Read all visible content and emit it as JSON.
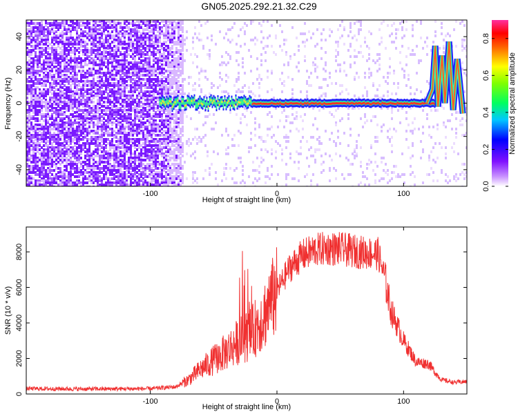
{
  "title": "GN05.2025.292.21.32.C29",
  "colors": {
    "trace": "#f03030",
    "frame": "#000000"
  },
  "chart_data": [
    {
      "type": "heatmap",
      "xlabel": "Height of straight line (km)",
      "ylabel": "Frequency (Hz)",
      "xlim": [
        -198,
        150
      ],
      "ylim": [
        -50,
        50
      ],
      "xticks": [
        -100,
        0,
        100
      ],
      "xtick_labels": [
        "-100",
        "0",
        "100"
      ],
      "yticks": [
        -40,
        -20,
        0,
        20,
        40
      ],
      "ytick_labels": [
        "-40",
        "-20",
        "0",
        "20",
        "40"
      ],
      "colorbar": {
        "label": "Normalized spectral amplitude",
        "range": [
          0,
          0.9
        ],
        "ticks": [
          0,
          0.2,
          0.4,
          0.6,
          0.8
        ],
        "tick_labels": [
          "0.0",
          "0.2",
          "0.4",
          "0.6",
          "0.8"
        ],
        "colormap": "rainbow (white-violet-blue-cyan-green-yellow-red-magenta)"
      },
      "features": {
        "noise_region_x": [
          -198,
          -75
        ],
        "signal_band_start_x": -93,
        "signal_band_center_hz": 0,
        "spike_end_x": [
          125,
          150
        ],
        "spike_peak_hz": 37
      },
      "grid": false
    },
    {
      "type": "line",
      "xlabel": "Height of straight line (km)",
      "ylabel": "SNR (10 * v/v)",
      "xlim": [
        -198,
        150
      ],
      "ylim": [
        0,
        9400
      ],
      "xticks": [
        -100,
        0,
        100
      ],
      "xtick_labels": [
        "-100",
        "0",
        "100"
      ],
      "yticks": [
        0,
        2000,
        4000,
        6000,
        8000
      ],
      "ytick_labels": [
        "0",
        "2000",
        "4000",
        "6000",
        "8000"
      ],
      "x": [
        -198,
        -150,
        -100,
        -80,
        -70,
        -60,
        -50,
        -40,
        -30,
        -20,
        -10,
        0,
        10,
        20,
        30,
        40,
        50,
        60,
        70,
        80,
        85,
        90,
        100,
        110,
        120,
        125,
        130,
        140,
        150
      ],
      "values": [
        300,
        280,
        300,
        400,
        800,
        1400,
        1900,
        2400,
        3000,
        3400,
        4500,
        5800,
        7100,
        7800,
        8100,
        8200,
        8150,
        8050,
        7950,
        7900,
        6600,
        4700,
        3000,
        1800,
        1700,
        1200,
        800,
        650,
        700
      ],
      "grid": false
    }
  ]
}
